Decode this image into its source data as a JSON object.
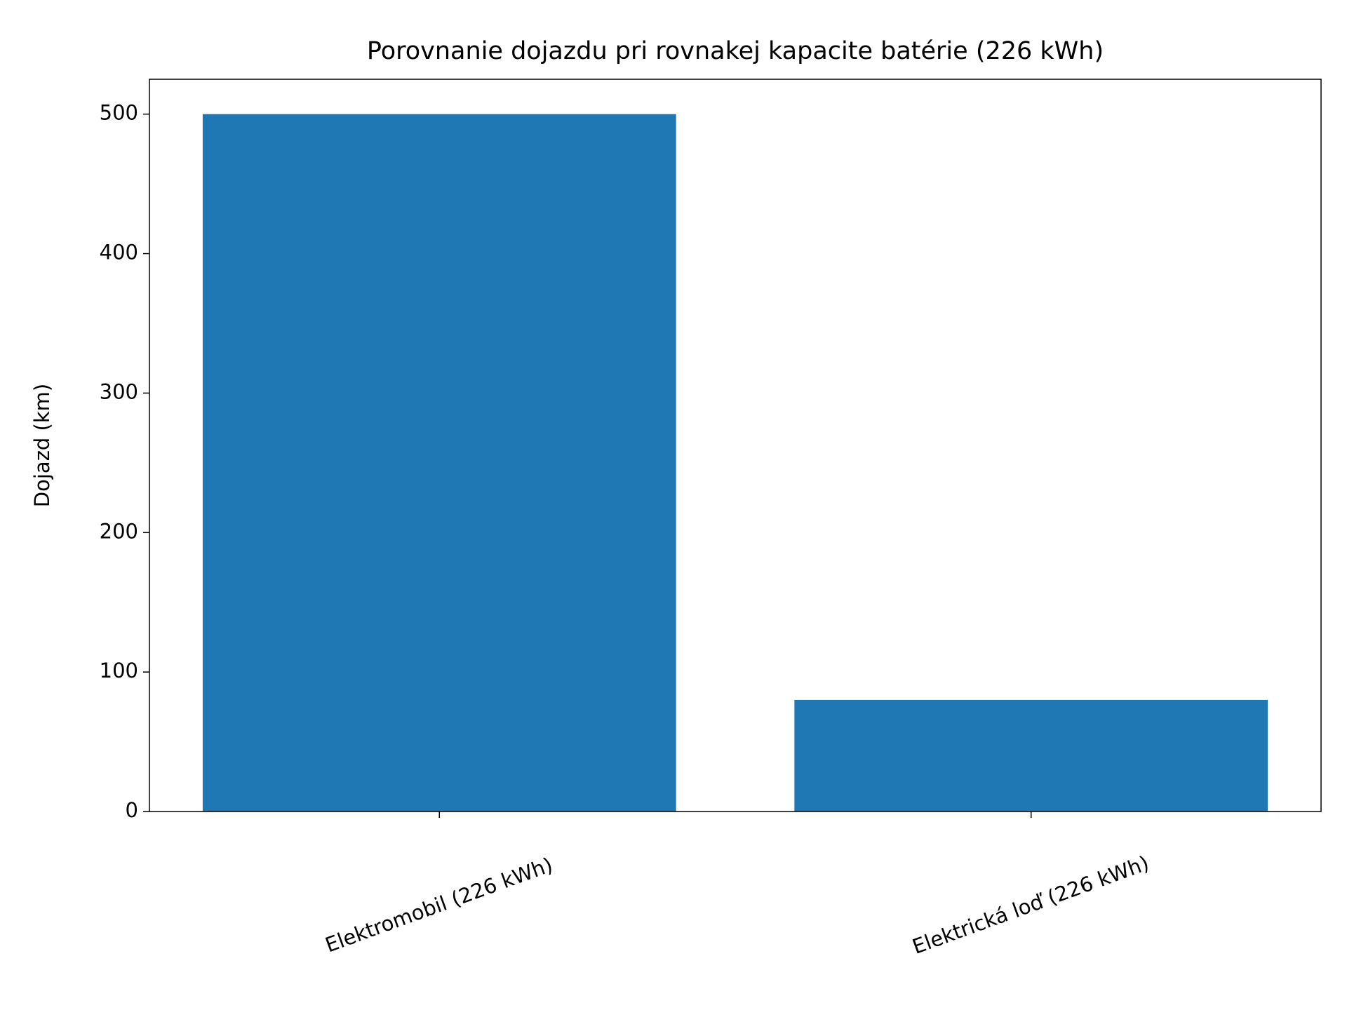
{
  "chart_data": {
    "type": "bar",
    "title": "Porovnanie dojazdu pri rovnakej kapacite batérie (226 kWh)",
    "ylabel": "Dojazd (km)",
    "categories": [
      "Elektromobil (226 kWh)",
      "Elektrická loď (226 kWh)"
    ],
    "values": [
      500,
      80
    ],
    "color": "#1f77b4",
    "ylim": [
      0,
      525
    ],
    "yticks": [
      0,
      100,
      200,
      300,
      400,
      500
    ],
    "grid": false
  }
}
